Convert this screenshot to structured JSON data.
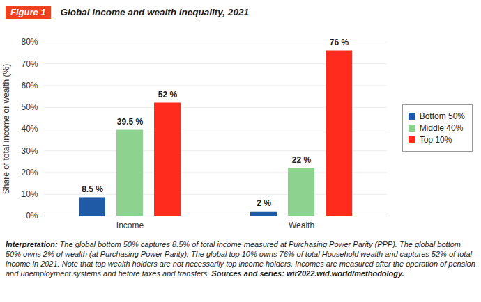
{
  "chart_data": {
    "type": "bar",
    "badge": "Figure 1",
    "title": "Global income and wealth inequality, 2021",
    "ylabel": "Share of total income or wealth (%)",
    "categories": [
      "Income",
      "Wealth"
    ],
    "series": [
      {
        "name": "Bottom 50%",
        "color": "#1f5aa6",
        "values": [
          8.5,
          2
        ],
        "value_labels": [
          "8.5 %",
          "2 %"
        ]
      },
      {
        "name": "Middle 40%",
        "color": "#8dd38f",
        "values": [
          39.5,
          22
        ],
        "value_labels": [
          "39.5 %",
          "22 %"
        ]
      },
      {
        "name": "Top 10%",
        "color": "#ff2b1c",
        "values": [
          52,
          76
        ],
        "value_labels": [
          "52 %",
          "76 %"
        ]
      }
    ],
    "ylim": [
      0,
      80
    ],
    "yticks": [
      {
        "value": 0,
        "label": "0%"
      },
      {
        "value": 10,
        "label": "10%"
      },
      {
        "value": 20,
        "label": "20%"
      },
      {
        "value": 30,
        "label": "30%"
      },
      {
        "value": 40,
        "label": "40%"
      },
      {
        "value": 50,
        "label": "50%"
      },
      {
        "value": 60,
        "label": "60%"
      },
      {
        "value": 70,
        "label": "70%"
      },
      {
        "value": 80,
        "label": "80%"
      }
    ],
    "grid": true,
    "legend": "right",
    "data_labels": true,
    "caption": {
      "interpretation_label": "Interpretation:",
      "interpretation": "The global bottom 50% captures 8.5% of total income measured at Purchasing Power Parity (PPP). The global bottom 50% owns 2% of wealth (at Purchasing Power Parity). The global top 10% owns 76% of total Household wealth and captures 52% of total income in 2021. Note that top wealth holders are not necessarily top income holders. Incomes are measured after the operation of pension and unemployment systems and before taxes and transfers.",
      "sources_label": "Sources and series:",
      "sources": "wir2022.wid.world/methodology."
    }
  }
}
